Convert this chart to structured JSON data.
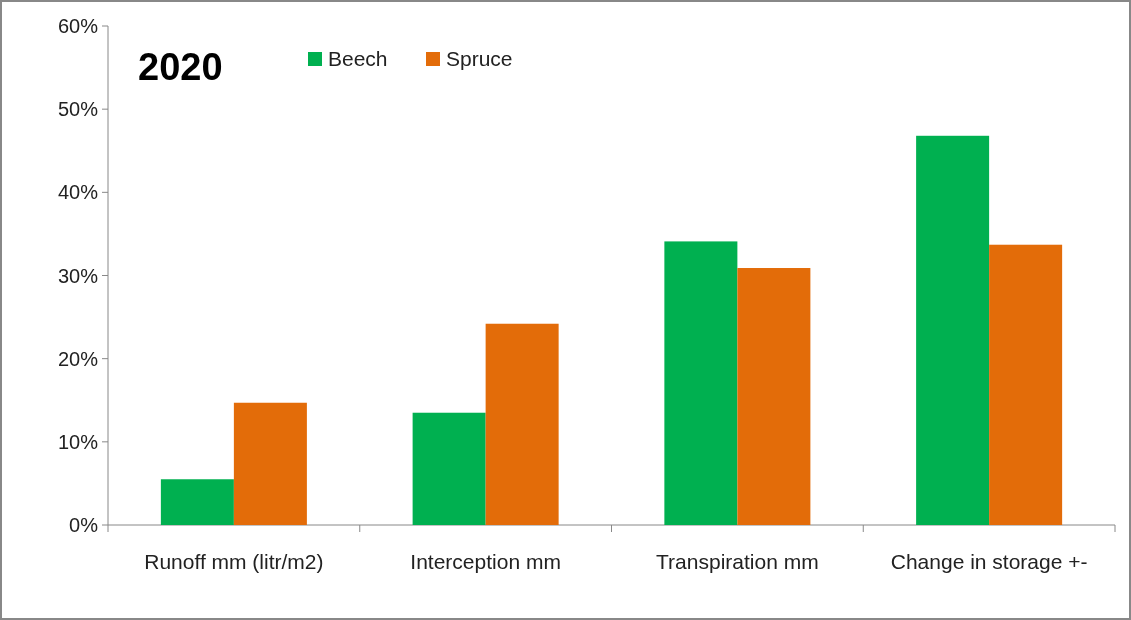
{
  "chart_data": {
    "type": "bar",
    "title": "2020",
    "categories": [
      "Runoff mm (litr/m2)",
      "Interception mm",
      "Transpiration mm",
      "Change in storage +-"
    ],
    "series": [
      {
        "name": "Beech",
        "color": "#00b050",
        "values": [
          5.5,
          13.5,
          34.1,
          46.8
        ]
      },
      {
        "name": "Spruce",
        "color": "#e36c09",
        "values": [
          14.7,
          24.2,
          30.9,
          33.7
        ]
      }
    ],
    "ylim": [
      0,
      60
    ],
    "yticks": [
      {
        "value": 0,
        "label": "0%"
      },
      {
        "value": 10,
        "label": "10%"
      },
      {
        "value": 20,
        "label": "20%"
      },
      {
        "value": 30,
        "label": "30%"
      },
      {
        "value": 40,
        "label": "40%"
      },
      {
        "value": 50,
        "label": "50%"
      },
      {
        "value": 60,
        "label": "60%"
      }
    ],
    "legend": "top left"
  }
}
